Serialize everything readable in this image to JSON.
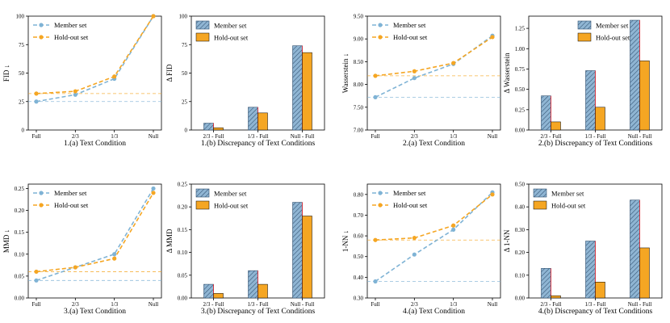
{
  "figure": {
    "member_color": "#7fb3d5",
    "holdout_color": "#f5a623",
    "hatch_color": "#2f4f6f",
    "bar_member_fill": "#8fb5d3",
    "bar_edge_color": "#e0303a",
    "grid": "off"
  },
  "chart_data": [
    {
      "type": "line",
      "panel": 0,
      "title": "1.(a) Text Condition",
      "ylabel": "FID ↓",
      "categories": [
        "Full",
        "2/3",
        "1/3",
        "Null"
      ],
      "ylim": [
        0,
        100
      ],
      "yticks": [
        "0",
        "25",
        "50",
        "75",
        "100"
      ],
      "ytick_values": [
        0,
        25,
        50,
        75,
        100
      ],
      "legend": [
        "Member set",
        "Hold-out set"
      ],
      "legend_position": "top-left",
      "series": [
        {
          "name": "Member set",
          "values": [
            25,
            31,
            45,
            100
          ]
        },
        {
          "name": "Hold-out set",
          "values": [
            32,
            34,
            47,
            100
          ]
        }
      ]
    },
    {
      "type": "bar",
      "panel": 1,
      "title": "1.(b) Discrepancy of Text Conditions",
      "ylabel": "Δ FID",
      "categories": [
        "2/3 - Full",
        "1/3 - Full",
        "Null - Full"
      ],
      "ylim": [
        0,
        100
      ],
      "yticks": [
        "0",
        "25",
        "50",
        "75",
        "100"
      ],
      "ytick_values": [
        0,
        25,
        50,
        75,
        100
      ],
      "legend": [
        "Member set",
        "Hold-out set"
      ],
      "legend_position": "top-left",
      "series": [
        {
          "name": "Member set",
          "values": [
            6,
            20,
            74
          ]
        },
        {
          "name": "Hold-out set",
          "values": [
            2,
            15,
            68
          ]
        }
      ]
    },
    {
      "type": "line",
      "panel": 2,
      "title": "2.(a) Text Condition",
      "ylabel": "Wasserstein ↓",
      "categories": [
        "Full",
        "2/3",
        "1/3",
        "Null"
      ],
      "ylim": [
        7.0,
        9.5
      ],
      "yticks": [
        "7.00",
        "7.50",
        "8.00",
        "8.50",
        "9.00",
        "9.50"
      ],
      "ytick_values": [
        7.0,
        7.5,
        8.0,
        8.5,
        9.0,
        9.5
      ],
      "legend": [
        "Member set",
        "Hold-out set"
      ],
      "legend_position": "top-left",
      "series": [
        {
          "name": "Member set",
          "values": [
            7.72,
            8.14,
            8.45,
            9.07
          ]
        },
        {
          "name": "Hold-out set",
          "values": [
            8.19,
            8.29,
            8.47,
            9.04
          ]
        }
      ]
    },
    {
      "type": "bar",
      "panel": 3,
      "title": "2.(b) Discrepancy of Text Conditions",
      "ylabel": "Δ Wasserstein",
      "categories": [
        "2/3 - Full",
        "1/3 - Full",
        "Null - Full"
      ],
      "ylim": [
        0,
        1.4
      ],
      "yticks": [
        "0.00",
        "0.25",
        "0.50",
        "0.75",
        "1.00",
        "1.25"
      ],
      "ytick_values": [
        0,
        0.25,
        0.5,
        0.75,
        1.0,
        1.25
      ],
      "legend": [
        "Member set",
        "Hold-out set"
      ],
      "legend_position": "top-right",
      "series": [
        {
          "name": "Member set",
          "values": [
            0.42,
            0.73,
            1.35
          ]
        },
        {
          "name": "Hold-out set",
          "values": [
            0.1,
            0.28,
            0.85
          ]
        }
      ]
    },
    {
      "type": "line",
      "panel": 4,
      "title": "3.(a) Text Condition",
      "ylabel": "MMD ↓",
      "categories": [
        "Full",
        "2/3",
        "1/3",
        "Null"
      ],
      "ylim": [
        0,
        0.26
      ],
      "yticks": [
        "0.00",
        "0.05",
        "0.10",
        "0.15",
        "0.20",
        "0.25"
      ],
      "ytick_values": [
        0,
        0.05,
        0.1,
        0.15,
        0.2,
        0.25
      ],
      "legend": [
        "Member set",
        "Hold-out set"
      ],
      "legend_position": "top-left",
      "series": [
        {
          "name": "Member set",
          "values": [
            0.04,
            0.07,
            0.1,
            0.25
          ]
        },
        {
          "name": "Hold-out set",
          "values": [
            0.06,
            0.07,
            0.09,
            0.24
          ]
        }
      ]
    },
    {
      "type": "bar",
      "panel": 5,
      "title": "3.(b) Discrepancy of Text Conditions",
      "ylabel": "Δ MMD",
      "categories": [
        "2/3 - Full",
        "1/3 - Full",
        "Null - Full"
      ],
      "ylim": [
        0,
        0.25
      ],
      "yticks": [
        "0.00",
        "0.05",
        "0.10",
        "0.15",
        "0.20",
        "0.25"
      ],
      "ytick_values": [
        0,
        0.05,
        0.1,
        0.15,
        0.2,
        0.25
      ],
      "legend": [
        "Member set",
        "Hold-out set"
      ],
      "legend_position": "top-left",
      "series": [
        {
          "name": "Member set",
          "values": [
            0.03,
            0.06,
            0.21
          ]
        },
        {
          "name": "Hold-out set",
          "values": [
            0.01,
            0.03,
            0.18
          ]
        }
      ]
    },
    {
      "type": "line",
      "panel": 6,
      "title": "4.(a) Text Condition",
      "ylabel": "1-NN ↓",
      "categories": [
        "Full",
        "2/3",
        "1/3",
        "Null"
      ],
      "ylim": [
        0.3,
        0.85
      ],
      "yticks": [
        "0.30",
        "0.40",
        "0.50",
        "0.60",
        "0.70",
        "0.80"
      ],
      "ytick_values": [
        0.3,
        0.4,
        0.5,
        0.6,
        0.7,
        0.8
      ],
      "legend": [
        "Member set",
        "Hold-out set"
      ],
      "legend_position": "top-left",
      "series": [
        {
          "name": "Member set",
          "values": [
            0.38,
            0.51,
            0.63,
            0.81
          ]
        },
        {
          "name": "Hold-out set",
          "values": [
            0.58,
            0.59,
            0.65,
            0.8
          ]
        }
      ]
    },
    {
      "type": "bar",
      "panel": 7,
      "title": "4.(b) Discrepancy of Text Conditions",
      "ylabel": "Δ 1-NN",
      "categories": [
        "2/3 - Full",
        "1/3 - Full",
        "Null - Full"
      ],
      "ylim": [
        0,
        0.5
      ],
      "yticks": [
        "0.00",
        "0.10",
        "0.20",
        "0.30",
        "0.40",
        "0.50"
      ],
      "ytick_values": [
        0,
        0.1,
        0.2,
        0.3,
        0.4,
        0.5
      ],
      "legend": [
        "Member set",
        "Hold-out set"
      ],
      "legend_position": "top-left",
      "series": [
        {
          "name": "Member set",
          "values": [
            0.13,
            0.25,
            0.43
          ]
        },
        {
          "name": "Hold-out set",
          "values": [
            0.01,
            0.07,
            0.22
          ]
        }
      ]
    }
  ]
}
